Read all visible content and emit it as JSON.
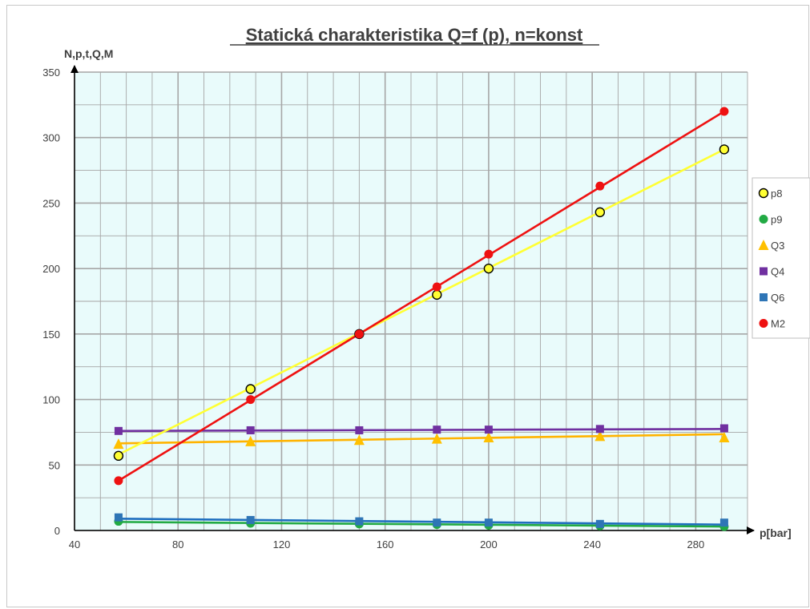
{
  "chart_data": {
    "type": "line",
    "title": "Statická charakteristika Q=f (p), n=konst",
    "xlabel": "p[bar]",
    "ylabel": "N,p,t,Q,M",
    "xlim": [
      40,
      300
    ],
    "ylim": [
      0,
      350
    ],
    "x_ticks": [
      40,
      80,
      120,
      160,
      200,
      240,
      280
    ],
    "y_ticks": [
      0,
      50,
      100,
      150,
      200,
      250,
      300,
      350
    ],
    "grid": true,
    "legend_position": "right",
    "colors": {
      "plot_background": "#e9fbfb",
      "grid": "#a6a6a6"
    },
    "series": [
      {
        "name": "p8",
        "color": "#ffff33",
        "marker": "circle-outline",
        "marker_fill": "#ffff33",
        "marker_stroke": "#000000",
        "points": [
          [
            57,
            57
          ],
          [
            108,
            108
          ],
          [
            150,
            150
          ],
          [
            180,
            180
          ],
          [
            200,
            200
          ],
          [
            243,
            243
          ],
          [
            291,
            291
          ]
        ],
        "trend": [
          [
            57,
            58
          ],
          [
            291,
            291
          ]
        ]
      },
      {
        "name": "p9",
        "color": "#22aa44",
        "marker": "circle",
        "marker_fill": "#22aa44",
        "marker_stroke": "none",
        "points": [
          [
            57,
            7
          ],
          [
            108,
            5.5
          ],
          [
            150,
            5
          ],
          [
            180,
            4.5
          ],
          [
            200,
            4
          ],
          [
            243,
            3.5
          ],
          [
            291,
            3
          ]
        ],
        "trend": [
          [
            57,
            6.5
          ],
          [
            291,
            3
          ]
        ]
      },
      {
        "name": "Q3",
        "color": "#ffb300",
        "marker": "triangle",
        "marker_fill": "#ffc000",
        "marker_stroke": "none",
        "points": [
          [
            57,
            66
          ],
          [
            108,
            68
          ],
          [
            150,
            69
          ],
          [
            180,
            70
          ],
          [
            200,
            71
          ],
          [
            243,
            72
          ],
          [
            291,
            71
          ]
        ],
        "trend": [
          [
            57,
            66.5
          ],
          [
            291,
            73.5
          ]
        ]
      },
      {
        "name": "Q4",
        "color": "#7030a0",
        "marker": "square",
        "marker_fill": "#7030a0",
        "marker_stroke": "none",
        "points": [
          [
            57,
            76
          ],
          [
            108,
            76.5
          ],
          [
            150,
            76.5
          ],
          [
            180,
            77
          ],
          [
            200,
            77
          ],
          [
            243,
            77.5
          ],
          [
            291,
            78
          ]
        ],
        "trend": [
          [
            57,
            76
          ],
          [
            291,
            77.5
          ]
        ]
      },
      {
        "name": "Q6",
        "color": "#1f6fbf",
        "marker": "square",
        "marker_fill": "#2e75b6",
        "marker_stroke": "none",
        "points": [
          [
            57,
            10
          ],
          [
            108,
            8
          ],
          [
            150,
            7
          ],
          [
            180,
            6
          ],
          [
            200,
            6
          ],
          [
            243,
            5
          ],
          [
            291,
            6
          ]
        ],
        "trend": [
          [
            57,
            9
          ],
          [
            291,
            4.5
          ]
        ]
      },
      {
        "name": "M2",
        "color": "#ee1111",
        "marker": "circle",
        "marker_fill": "#ee1111",
        "marker_stroke": "none",
        "points": [
          [
            57,
            38
          ],
          [
            108,
            100
          ],
          [
            150,
            150
          ],
          [
            180,
            186
          ],
          [
            200,
            211
          ],
          [
            243,
            263
          ],
          [
            291,
            320
          ]
        ],
        "trend": [
          [
            57,
            38
          ],
          [
            291,
            320
          ]
        ]
      }
    ]
  }
}
